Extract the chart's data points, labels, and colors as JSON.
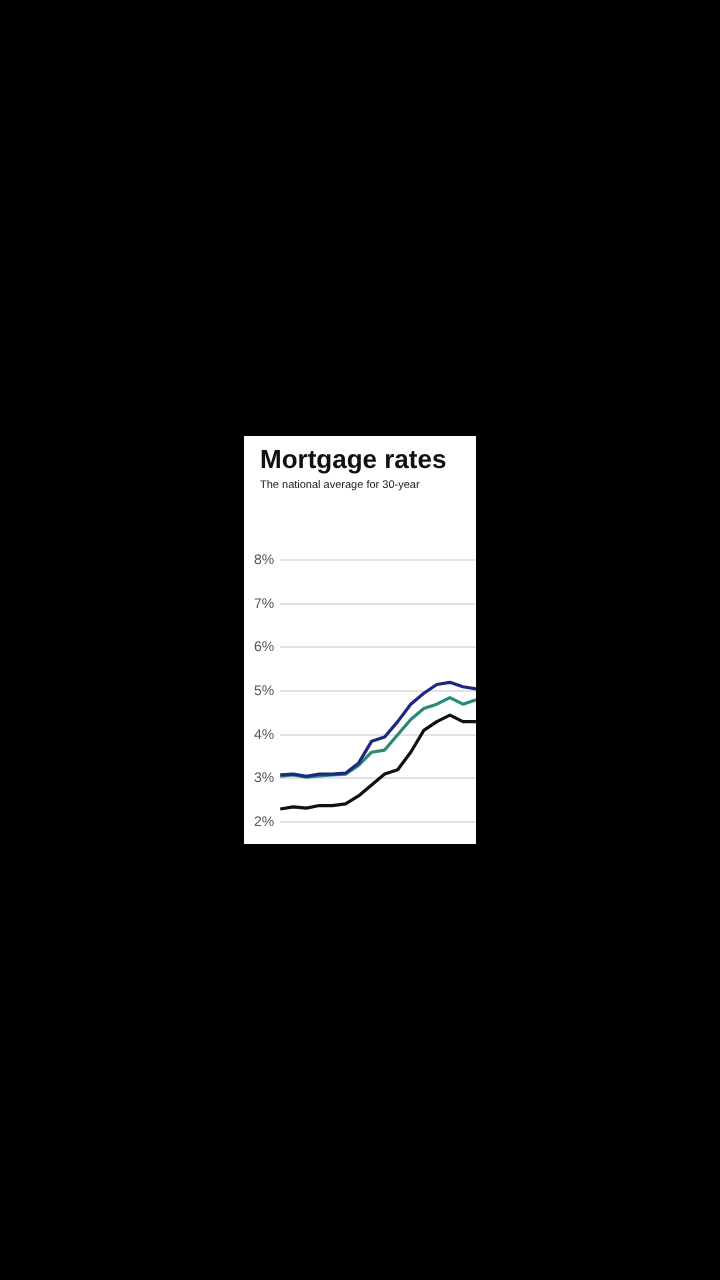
{
  "chart_data": {
    "type": "line",
    "title": "Mortgage rates",
    "subtitle": "The national average for 30-year",
    "categories": [
      null,
      null,
      null,
      null,
      null,
      null,
      null,
      null,
      null,
      null,
      null,
      null,
      null,
      null,
      null,
      null
    ],
    "series": [
      {
        "color": "#1b2a7e",
        "values": [
          3.08,
          3.1,
          3.05,
          3.1,
          3.1,
          3.12,
          3.35,
          3.85,
          3.95,
          4.3,
          4.7,
          4.95,
          5.15,
          5.2,
          5.1,
          5.05
        ]
      },
      {
        "color": "#2a8a78",
        "values": [
          3.05,
          3.08,
          3.03,
          3.06,
          3.08,
          3.1,
          3.3,
          3.6,
          3.65,
          4.0,
          4.35,
          4.6,
          4.7,
          4.85,
          4.7,
          4.8
        ]
      },
      {
        "color": "#111111",
        "values": [
          2.3,
          2.35,
          2.32,
          2.38,
          2.38,
          2.42,
          2.6,
          2.85,
          3.1,
          3.2,
          3.6,
          4.1,
          4.3,
          4.45,
          4.3,
          4.3
        ]
      }
    ],
    "ylim": [
      1.5,
      8
    ],
    "yticks": [
      {
        "value": 2,
        "label": "2%"
      },
      {
        "value": 3,
        "label": "3%"
      },
      {
        "value": 4,
        "label": "4%"
      },
      {
        "value": 5,
        "label": "5%"
      },
      {
        "value": 6,
        "label": "6%"
      },
      {
        "value": 7,
        "label": "7%"
      },
      {
        "value": 8,
        "label": "8%"
      }
    ],
    "grid": "y",
    "tick_labels": "y",
    "marker": "none",
    "line_style": "solid"
  }
}
